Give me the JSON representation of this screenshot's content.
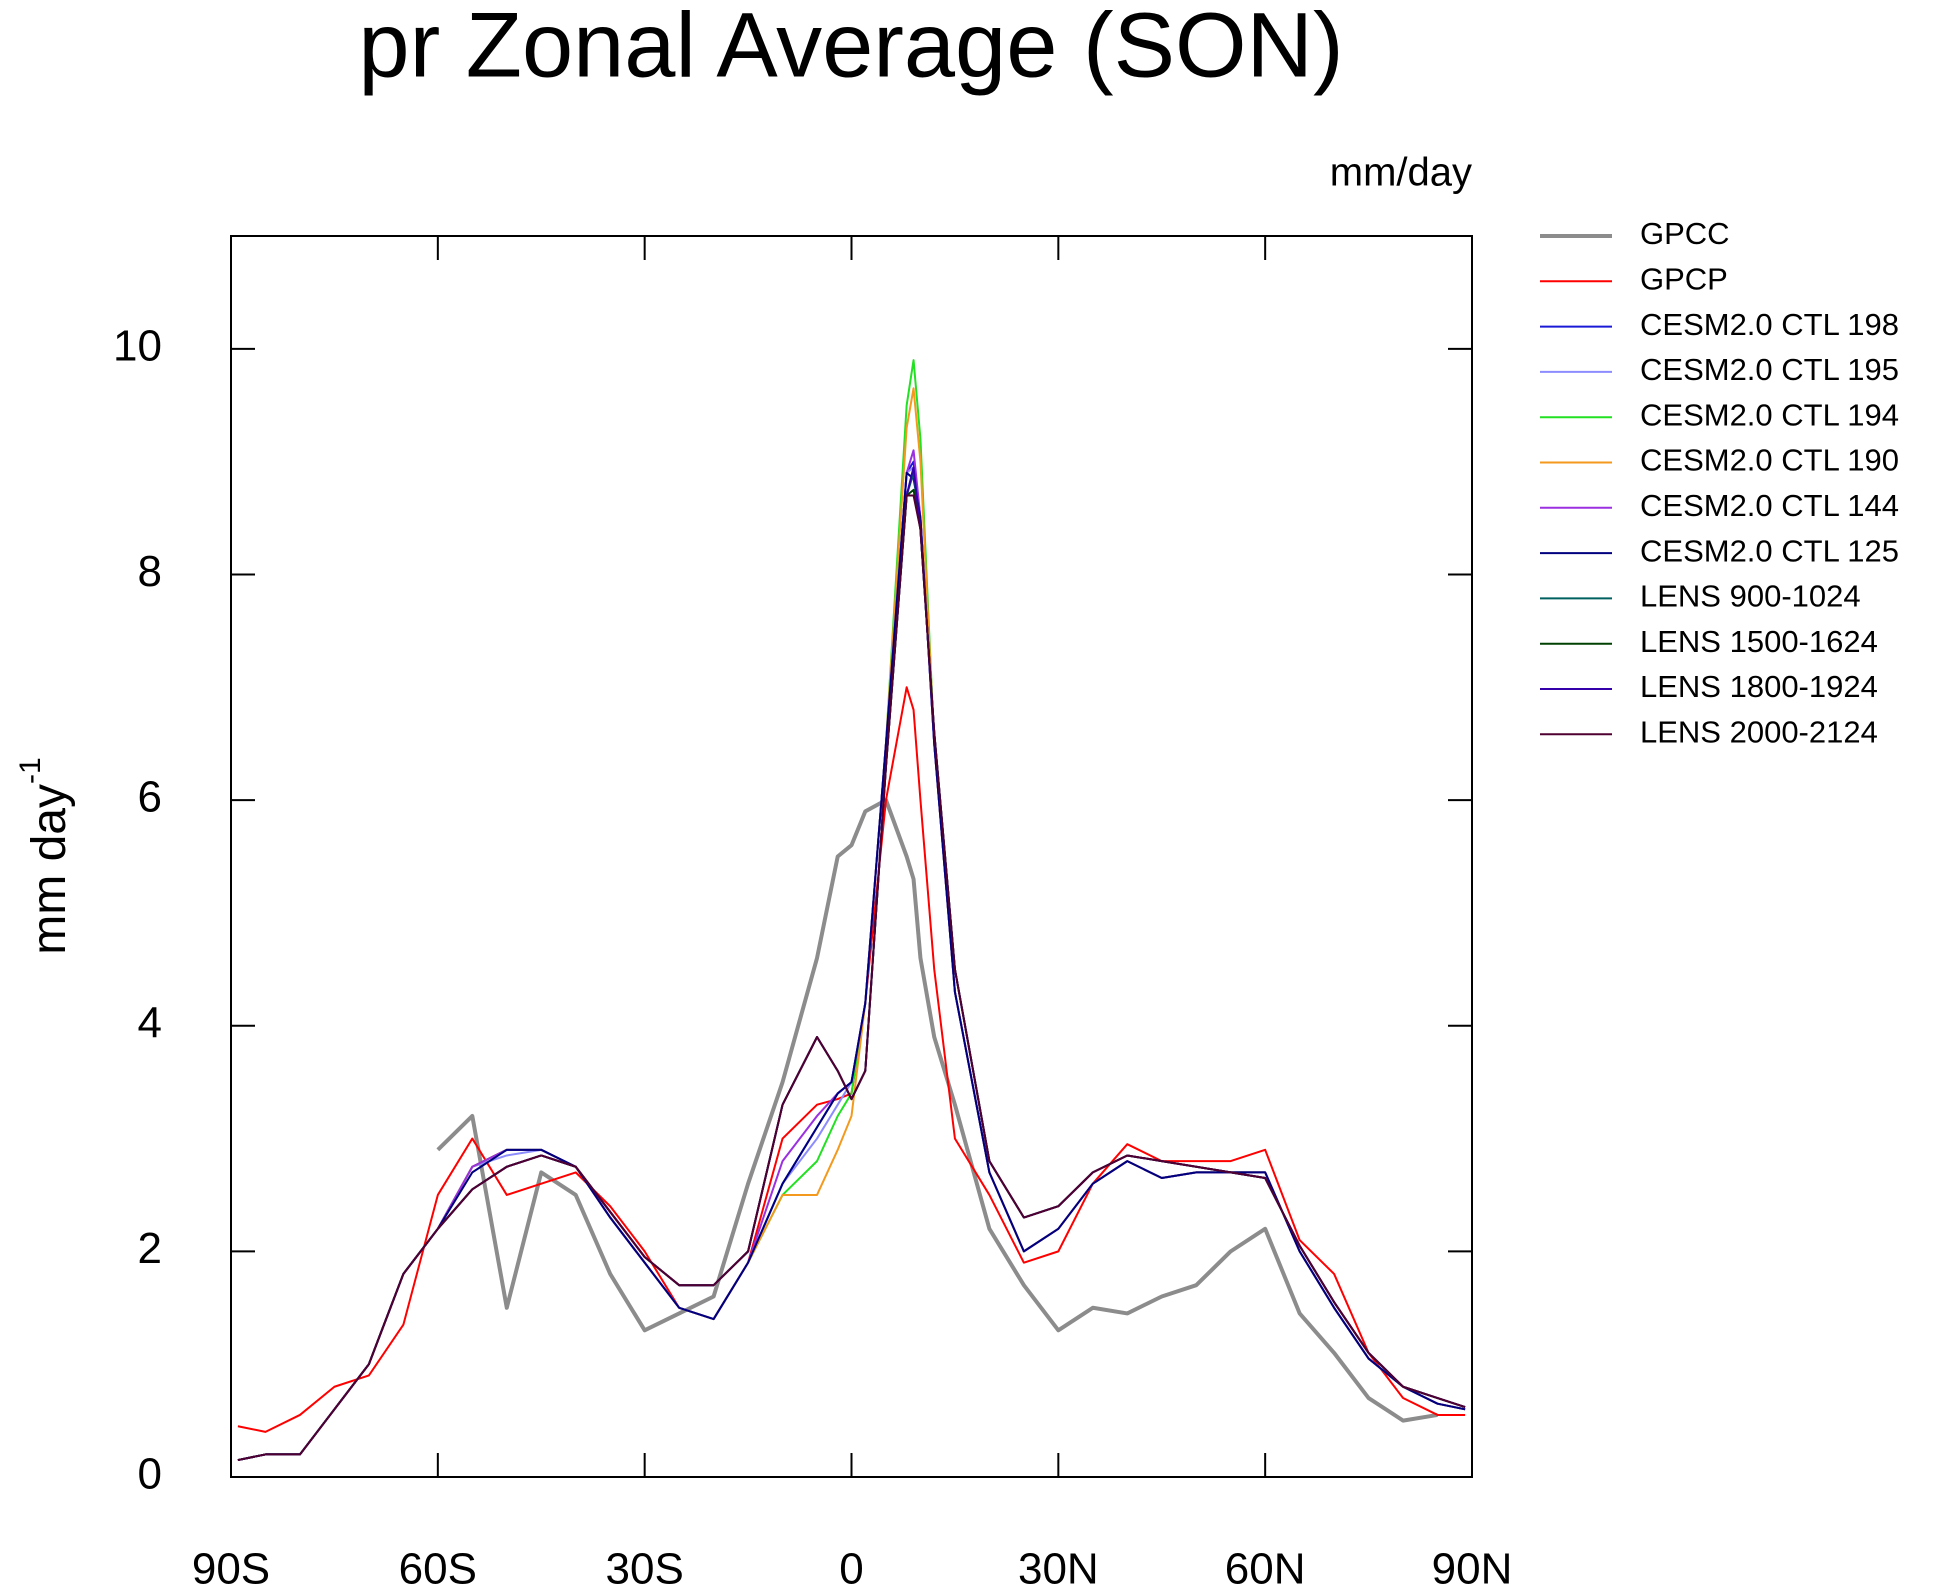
{
  "chart_data": {
    "type": "line",
    "title": "pr Zonal Average (SON)",
    "unit_label": "mm/day",
    "y_label": "mm day",
    "y_label_exponent": "-1",
    "xlim": [
      -90,
      90
    ],
    "ylim": [
      0,
      11
    ],
    "xticks": [
      {
        "value": -90,
        "label": "90S"
      },
      {
        "value": -60,
        "label": "60S"
      },
      {
        "value": -30,
        "label": "30S"
      },
      0,
      {
        "value": 30,
        "label": "30N"
      },
      {
        "value": 60,
        "label": "60N"
      },
      {
        "value": 90,
        "label": "90N"
      }
    ],
    "yticks": [
      0,
      2,
      4,
      6,
      8,
      10
    ],
    "legend": "right",
    "x": [
      -89,
      -85,
      -80,
      -75,
      -70,
      -65,
      -60,
      -55,
      -50,
      -45,
      -40,
      -35,
      -30,
      -25,
      -20,
      -15,
      -10,
      -5,
      -2,
      0,
      2,
      5,
      8,
      9,
      10,
      12,
      15,
      20,
      25,
      30,
      35,
      40,
      45,
      50,
      55,
      60,
      65,
      70,
      75,
      80,
      85,
      89
    ],
    "series": [
      {
        "name": "GPCC",
        "color": "#8c8c8c",
        "values": [
          null,
          null,
          null,
          null,
          null,
          null,
          2.9,
          3.2,
          1.5,
          2.7,
          2.5,
          1.8,
          1.3,
          1.45,
          1.6,
          2.6,
          3.5,
          4.6,
          5.5,
          5.6,
          5.9,
          6.0,
          5.5,
          5.3,
          4.6,
          3.9,
          3.3,
          2.2,
          1.7,
          1.3,
          1.5,
          1.45,
          1.6,
          1.7,
          2.0,
          2.2,
          1.45,
          1.1,
          0.7,
          0.5,
          0.55,
          null
        ]
      },
      {
        "name": "GPCP",
        "color": "#ff0000",
        "values": [
          0.45,
          0.4,
          0.55,
          0.8,
          0.9,
          1.35,
          2.5,
          3.0,
          2.5,
          2.6,
          2.7,
          2.4,
          2.0,
          1.5,
          1.4,
          1.9,
          3.0,
          3.3,
          3.35,
          3.4,
          4.2,
          6.0,
          7.0,
          6.8,
          6.0,
          4.5,
          3.0,
          2.5,
          1.9,
          2.0,
          2.6,
          2.95,
          2.8,
          2.8,
          2.8,
          2.9,
          2.1,
          1.8,
          1.1,
          0.7,
          0.55,
          0.55
        ]
      },
      {
        "name": "CESM2.0 CTL 198",
        "color": "#1a1ad6",
        "values": [
          0.15,
          0.2,
          0.2,
          0.6,
          1.0,
          1.8,
          2.2,
          2.75,
          2.9,
          2.9,
          2.75,
          2.3,
          1.9,
          1.5,
          1.4,
          1.9,
          2.6,
          3.1,
          3.4,
          3.5,
          4.2,
          6.5,
          8.9,
          9.0,
          8.5,
          6.5,
          4.3,
          2.7,
          2.0,
          2.2,
          2.6,
          2.8,
          2.65,
          2.7,
          2.7,
          2.7,
          2.0,
          1.5,
          1.05,
          0.8,
          0.65,
          0.6
        ]
      },
      {
        "name": "CESM2.0 CTL 195",
        "color": "#8c8cff",
        "values": [
          0.15,
          0.2,
          0.2,
          0.6,
          1.0,
          1.8,
          2.2,
          2.75,
          2.85,
          2.9,
          2.75,
          2.3,
          1.9,
          1.5,
          1.4,
          1.9,
          2.6,
          3.0,
          3.3,
          3.5,
          4.2,
          6.5,
          8.9,
          8.95,
          8.5,
          6.5,
          4.3,
          2.7,
          2.0,
          2.2,
          2.6,
          2.8,
          2.65,
          2.7,
          2.7,
          2.7,
          2.0,
          1.5,
          1.05,
          0.8,
          0.65,
          0.6
        ]
      },
      {
        "name": "CESM2.0 CTL 194",
        "color": "#22e022",
        "values": [
          0.15,
          0.2,
          0.2,
          0.6,
          1.0,
          1.8,
          2.2,
          2.75,
          2.9,
          2.9,
          2.75,
          2.3,
          1.9,
          1.5,
          1.4,
          1.9,
          2.5,
          2.8,
          3.2,
          3.4,
          4.2,
          6.5,
          9.5,
          9.9,
          9.2,
          6.5,
          4.3,
          2.7,
          2.0,
          2.2,
          2.6,
          2.8,
          2.65,
          2.7,
          2.7,
          2.7,
          2.0,
          1.5,
          1.05,
          0.8,
          0.65,
          0.6
        ]
      },
      {
        "name": "CESM2.0 CTL 190",
        "color": "#f39a1e",
        "values": [
          0.15,
          0.2,
          0.2,
          0.6,
          1.0,
          1.8,
          2.2,
          2.75,
          2.9,
          2.9,
          2.75,
          2.3,
          1.9,
          1.5,
          1.4,
          1.9,
          2.5,
          2.5,
          2.9,
          3.2,
          4.2,
          6.5,
          9.3,
          9.65,
          9.0,
          6.5,
          4.3,
          2.7,
          2.0,
          2.2,
          2.6,
          2.8,
          2.65,
          2.7,
          2.7,
          2.7,
          2.0,
          1.5,
          1.05,
          0.8,
          0.65,
          0.6
        ]
      },
      {
        "name": "CESM2.0 CTL 144",
        "color": "#9a30e0",
        "values": [
          0.15,
          0.2,
          0.2,
          0.6,
          1.0,
          1.8,
          2.2,
          2.75,
          2.9,
          2.9,
          2.75,
          2.3,
          1.9,
          1.5,
          1.4,
          1.9,
          2.8,
          3.2,
          3.4,
          3.5,
          4.2,
          6.5,
          8.9,
          9.1,
          8.5,
          6.5,
          4.3,
          2.7,
          2.0,
          2.2,
          2.6,
          2.8,
          2.65,
          2.7,
          2.7,
          2.7,
          2.0,
          1.5,
          1.05,
          0.8,
          0.65,
          0.6
        ]
      },
      {
        "name": "CESM2.0 CTL 125",
        "color": "#00007f",
        "values": [
          0.15,
          0.2,
          0.2,
          0.6,
          1.0,
          1.8,
          2.2,
          2.7,
          2.9,
          2.9,
          2.75,
          2.3,
          1.9,
          1.5,
          1.4,
          1.9,
          2.6,
          3.1,
          3.4,
          3.5,
          4.2,
          6.5,
          8.9,
          8.85,
          8.5,
          6.5,
          4.3,
          2.7,
          2.0,
          2.2,
          2.6,
          2.8,
          2.65,
          2.7,
          2.7,
          2.7,
          2.0,
          1.5,
          1.05,
          0.8,
          0.65,
          0.6
        ]
      },
      {
        "name": "LENS 900-1024",
        "color": "#006060",
        "values": [
          0.15,
          0.2,
          0.2,
          0.6,
          1.0,
          1.8,
          2.2,
          2.55,
          2.75,
          2.85,
          2.75,
          2.35,
          1.95,
          1.7,
          1.7,
          2.0,
          3.3,
          3.9,
          3.6,
          3.35,
          3.6,
          6.3,
          8.7,
          8.9,
          8.4,
          6.6,
          4.5,
          2.8,
          2.3,
          2.4,
          2.7,
          2.85,
          2.8,
          2.75,
          2.7,
          2.65,
          2.05,
          1.55,
          1.1,
          0.8,
          0.7,
          0.62
        ]
      },
      {
        "name": "LENS 1500-1624",
        "color": "#004000",
        "values": [
          0.15,
          0.2,
          0.2,
          0.6,
          1.0,
          1.8,
          2.2,
          2.55,
          2.75,
          2.85,
          2.75,
          2.35,
          1.95,
          1.7,
          1.7,
          2.0,
          3.3,
          3.9,
          3.6,
          3.35,
          3.6,
          6.3,
          8.7,
          8.75,
          8.4,
          6.6,
          4.5,
          2.8,
          2.3,
          2.4,
          2.7,
          2.85,
          2.8,
          2.75,
          2.7,
          2.65,
          2.05,
          1.55,
          1.1,
          0.8,
          0.7,
          0.62
        ]
      },
      {
        "name": "LENS 1800-1924",
        "color": "#3300aa",
        "values": [
          0.15,
          0.2,
          0.2,
          0.6,
          1.0,
          1.8,
          2.2,
          2.55,
          2.75,
          2.85,
          2.75,
          2.35,
          1.95,
          1.7,
          1.7,
          2.0,
          3.3,
          3.9,
          3.6,
          3.35,
          3.6,
          6.3,
          8.7,
          8.95,
          8.4,
          6.6,
          4.5,
          2.8,
          2.3,
          2.4,
          2.7,
          2.85,
          2.8,
          2.75,
          2.7,
          2.65,
          2.05,
          1.55,
          1.1,
          0.8,
          0.7,
          0.62
        ]
      },
      {
        "name": "LENS 2000-2124",
        "color": "#500030",
        "values": [
          0.15,
          0.2,
          0.2,
          0.6,
          1.0,
          1.8,
          2.2,
          2.55,
          2.75,
          2.85,
          2.75,
          2.35,
          1.95,
          1.7,
          1.7,
          2.0,
          3.3,
          3.9,
          3.6,
          3.35,
          3.6,
          6.3,
          8.7,
          8.7,
          8.4,
          6.6,
          4.5,
          2.8,
          2.3,
          2.4,
          2.7,
          2.85,
          2.8,
          2.75,
          2.7,
          2.65,
          2.05,
          1.55,
          1.1,
          0.8,
          0.7,
          0.62
        ]
      }
    ]
  }
}
